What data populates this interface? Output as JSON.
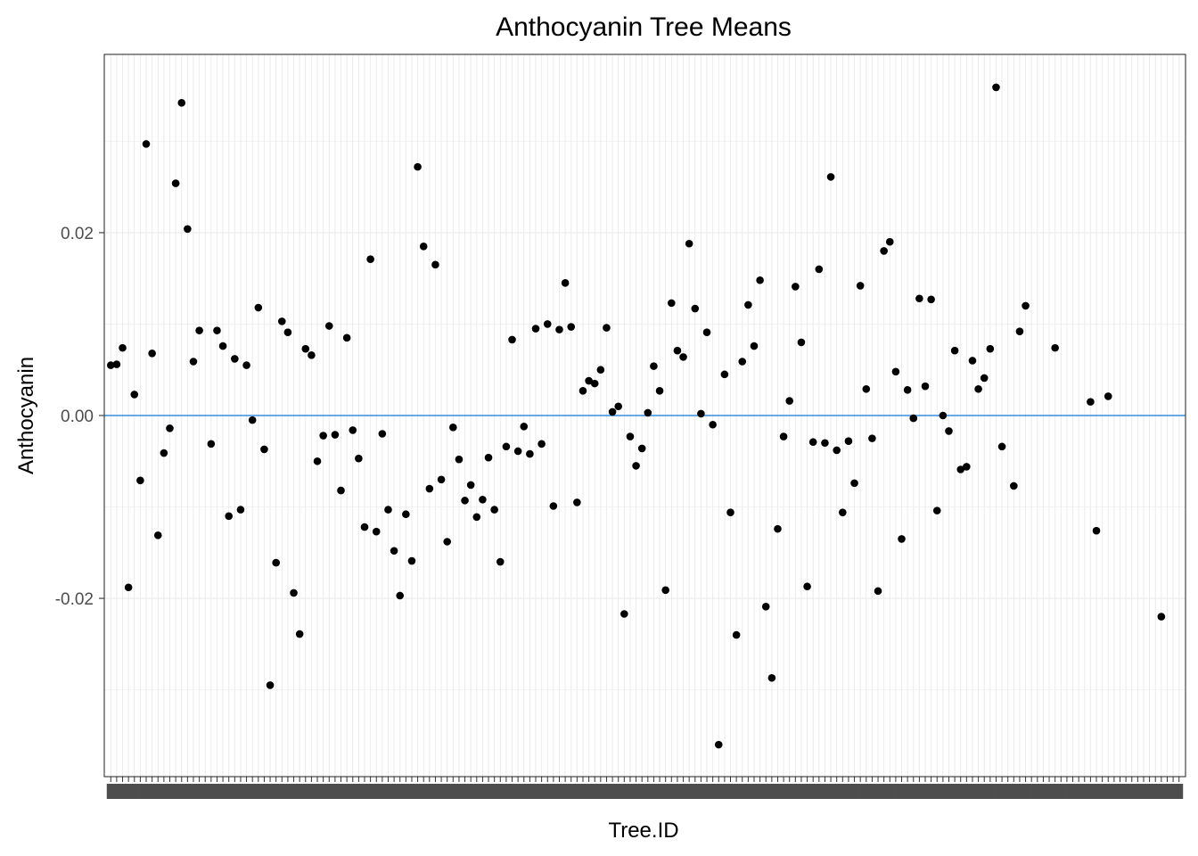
{
  "chart_data": {
    "type": "scatter",
    "title": "Anthocyanin Tree Means",
    "xlabel": "Tree.ID",
    "ylabel": "Anthocyanin",
    "x_tick_labels_overplotted": true,
    "x_category_count": 182,
    "ylim": [
      -0.0395,
      0.0395
    ],
    "y_ticks": [
      -0.02,
      0.0,
      0.02
    ],
    "y_tick_labels": [
      "-0.02",
      "0.00",
      "0.02"
    ],
    "y_minor_ticks": [
      -0.03,
      -0.01,
      0.01,
      0.03
    ],
    "reference_line": {
      "y": 0,
      "color": "#3a8fe0"
    },
    "point_color": "#000000",
    "grid": true,
    "theme": "bw",
    "points": [
      [
        1,
        0.0055
      ],
      [
        2,
        0.0056
      ],
      [
        3,
        0.0074
      ],
      [
        4,
        -0.0188
      ],
      [
        5,
        0.0023
      ],
      [
        6,
        -0.0071
      ],
      [
        7,
        0.0297
      ],
      [
        8,
        0.0068
      ],
      [
        9,
        -0.0131
      ],
      [
        10,
        -0.0041
      ],
      [
        11,
        -0.0014
      ],
      [
        12,
        0.0254
      ],
      [
        13,
        0.0342
      ],
      [
        14,
        0.0204
      ],
      [
        15,
        0.0059
      ],
      [
        16,
        0.0093
      ],
      [
        18,
        -0.0031
      ],
      [
        19,
        0.0093
      ],
      [
        20,
        0.0076
      ],
      [
        21,
        -0.011
      ],
      [
        22,
        0.0062
      ],
      [
        23,
        -0.0103
      ],
      [
        24,
        0.0055
      ],
      [
        25,
        -0.0005
      ],
      [
        26,
        0.0118
      ],
      [
        27,
        -0.0037
      ],
      [
        28,
        -0.0295
      ],
      [
        29,
        -0.0161
      ],
      [
        30,
        0.0103
      ],
      [
        31,
        0.0091
      ],
      [
        32,
        -0.0194
      ],
      [
        33,
        -0.0239
      ],
      [
        34,
        0.0073
      ],
      [
        35,
        0.0066
      ],
      [
        36,
        -0.005
      ],
      [
        37,
        -0.0022
      ],
      [
        38,
        0.0098
      ],
      [
        39,
        -0.0021
      ],
      [
        40,
        -0.0082
      ],
      [
        41,
        0.0085
      ],
      [
        42,
        -0.0016
      ],
      [
        43,
        -0.0047
      ],
      [
        44,
        -0.0122
      ],
      [
        45,
        0.0171
      ],
      [
        46,
        -0.0127
      ],
      [
        47,
        -0.002
      ],
      [
        48,
        -0.0103
      ],
      [
        49,
        -0.0148
      ],
      [
        50,
        -0.0197
      ],
      [
        51,
        -0.0108
      ],
      [
        52,
        -0.0159
      ],
      [
        53,
        0.0272
      ],
      [
        54,
        0.0185
      ],
      [
        55,
        -0.008
      ],
      [
        56,
        0.0165
      ],
      [
        57,
        -0.007
      ],
      [
        58,
        -0.0138
      ],
      [
        59,
        -0.0013
      ],
      [
        60,
        -0.0048
      ],
      [
        61,
        -0.0093
      ],
      [
        62,
        -0.0076
      ],
      [
        63,
        -0.0111
      ],
      [
        64,
        -0.0092
      ],
      [
        65,
        -0.0046
      ],
      [
        66,
        -0.0103
      ],
      [
        67,
        -0.016
      ],
      [
        68,
        -0.0034
      ],
      [
        69,
        0.0083
      ],
      [
        70,
        -0.0039
      ],
      [
        71,
        -0.0012
      ],
      [
        72,
        -0.0042
      ],
      [
        73,
        0.0095
      ],
      [
        74,
        -0.0031
      ],
      [
        75,
        0.01
      ],
      [
        76,
        -0.0099
      ],
      [
        77,
        0.0094
      ],
      [
        78,
        0.0145
      ],
      [
        79,
        0.0097
      ],
      [
        80,
        -0.0095
      ],
      [
        81,
        0.0027
      ],
      [
        82,
        0.0038
      ],
      [
        83,
        0.0035
      ],
      [
        84,
        0.005
      ],
      [
        85,
        0.0096
      ],
      [
        86,
        0.0004
      ],
      [
        87,
        0.001
      ],
      [
        88,
        -0.0217
      ],
      [
        89,
        -0.0023
      ],
      [
        90,
        -0.0055
      ],
      [
        91,
        -0.0036
      ],
      [
        92,
        0.0003
      ],
      [
        93,
        0.0054
      ],
      [
        94,
        0.0027
      ],
      [
        95,
        -0.0191
      ],
      [
        96,
        0.0123
      ],
      [
        97,
        0.0071
      ],
      [
        98,
        0.0064
      ],
      [
        99,
        0.0188
      ],
      [
        100,
        0.0117
      ],
      [
        101,
        0.0002
      ],
      [
        102,
        0.0091
      ],
      [
        103,
        -0.001
      ],
      [
        104,
        -0.036
      ],
      [
        105,
        0.0045
      ],
      [
        106,
        -0.0106
      ],
      [
        107,
        -0.024
      ],
      [
        108,
        0.0059
      ],
      [
        109,
        0.0121
      ],
      [
        110,
        0.0076
      ],
      [
        111,
        0.0148
      ],
      [
        112,
        -0.0209
      ],
      [
        113,
        -0.0287
      ],
      [
        114,
        -0.0124
      ],
      [
        115,
        -0.0023
      ],
      [
        116,
        0.0016
      ],
      [
        117,
        0.0141
      ],
      [
        118,
        0.008
      ],
      [
        119,
        -0.0187
      ],
      [
        120,
        -0.0029
      ],
      [
        121,
        0.016
      ],
      [
        122,
        -0.003
      ],
      [
        123,
        0.0261
      ],
      [
        124,
        -0.0038
      ],
      [
        125,
        -0.0106
      ],
      [
        126,
        -0.0028
      ],
      [
        127,
        -0.0074
      ],
      [
        128,
        0.0142
      ],
      [
        129,
        0.0029
      ],
      [
        130,
        -0.0025
      ],
      [
        131,
        -0.0192
      ],
      [
        132,
        0.018
      ],
      [
        133,
        0.019
      ],
      [
        134,
        0.0048
      ],
      [
        135,
        -0.0135
      ],
      [
        136,
        0.0028
      ],
      [
        137,
        -0.0003
      ],
      [
        138,
        0.0128
      ],
      [
        139,
        0.0032
      ],
      [
        140,
        0.0127
      ],
      [
        141,
        -0.0104
      ],
      [
        142,
        0.0
      ],
      [
        143,
        -0.0017
      ],
      [
        144,
        0.0071
      ],
      [
        145,
        -0.0059
      ],
      [
        146,
        -0.0056
      ],
      [
        147,
        0.006
      ],
      [
        148,
        0.0029
      ],
      [
        149,
        0.0041
      ],
      [
        150,
        0.0073
      ],
      [
        151,
        0.0359
      ],
      [
        152,
        -0.0034
      ],
      [
        154,
        -0.0077
      ],
      [
        155,
        0.0092
      ],
      [
        156,
        0.012
      ],
      [
        161,
        0.0074
      ],
      [
        167,
        0.0015
      ],
      [
        168,
        -0.0126
      ],
      [
        170,
        0.0021
      ],
      [
        179,
        -0.022
      ]
    ]
  }
}
